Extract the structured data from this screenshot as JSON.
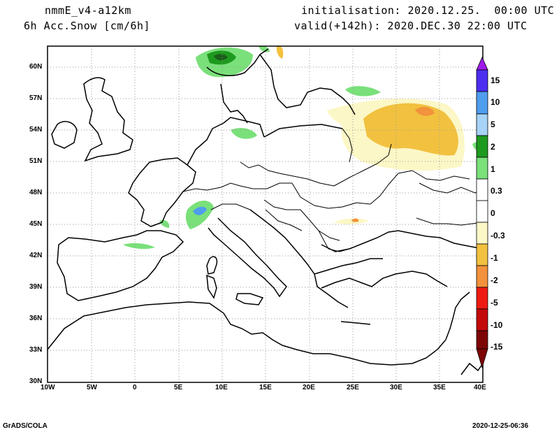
{
  "header": {
    "model": "nmmE_v4-a12km",
    "field": "6h Acc.Snow [cm/6h]",
    "init": "initialisation: 2020.12.25.  00:00 UTC",
    "valid": "valid(+142h): 2020.DEC.30 22:00 UTC"
  },
  "map": {
    "lon_ticks": [
      "10W",
      "5W",
      "0",
      "5E",
      "10E",
      "15E",
      "20E",
      "25E",
      "30E",
      "35E",
      "40E"
    ],
    "lat_ticks": [
      "60N",
      "57N",
      "54N",
      "51N",
      "48N",
      "45N",
      "42N",
      "39N",
      "36N",
      "33N",
      "30N"
    ],
    "lon_range": [
      -10,
      40
    ],
    "lat_range": [
      30,
      62
    ]
  },
  "colorbar": {
    "labels": [
      "15",
      "10",
      "5",
      "2",
      "1",
      "0.3",
      "0",
      "-0.3",
      "-1",
      "-2",
      "-5",
      "-10",
      "-15"
    ],
    "colors": [
      "#4b2ef0",
      "#4f9ded",
      "#a6d3f6",
      "#1e9a1e",
      "#7ae07a",
      "#ffffff",
      "#ffffff",
      "#fcf7c6",
      "#f2c13f",
      "#f2923c",
      "#ee1a12",
      "#c4090b",
      "#7e0506"
    ],
    "top_arrow_color": "#a01aec",
    "bottom_arrow_color": "#7e0506"
  },
  "footer": {
    "left": "GrADS/COLA",
    "right": "2020-12-25-06:36"
  }
}
